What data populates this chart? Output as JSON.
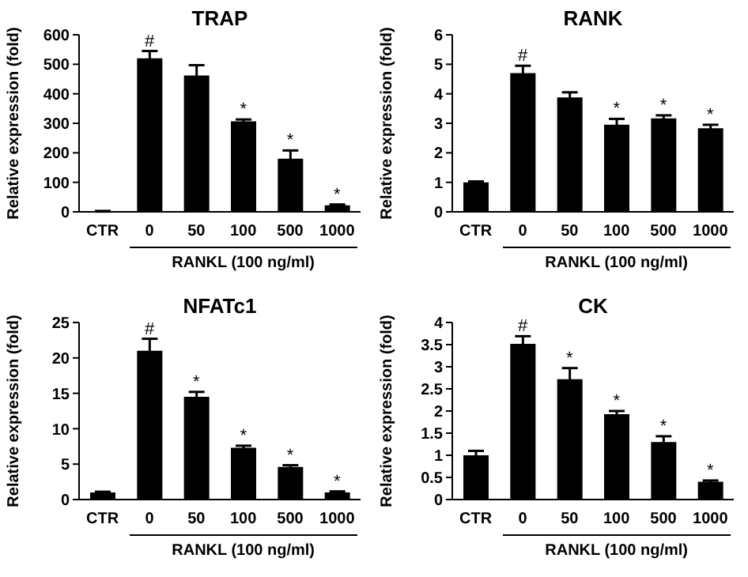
{
  "chart_data": [
    {
      "type": "bar",
      "title": "TRAP",
      "xlabel": "RANKL (100 ng/ml)",
      "ylabel": "Relative expression (fold)",
      "categories": [
        "CTR",
        "0",
        "50",
        "100",
        "500",
        "1000"
      ],
      "values": [
        2,
        520,
        462,
        307,
        180,
        22
      ],
      "errors": [
        1,
        25,
        35,
        6,
        28,
        3
      ],
      "color": "#000000",
      "ylim": [
        0,
        600
      ],
      "yticks": [
        0,
        100,
        200,
        300,
        400,
        500,
        600
      ],
      "grid": false,
      "annotations": [
        {
          "text": "#",
          "x": "0",
          "y": 520
        },
        {
          "text": "*",
          "x": "100",
          "y": 307
        },
        {
          "text": "*",
          "x": "500",
          "y": 180
        },
        {
          "text": "*",
          "x": "1000",
          "y": 22
        }
      ]
    },
    {
      "type": "bar",
      "title": "RANK",
      "xlabel": "RANKL (100 ng/ml)",
      "ylabel": "Relative expression (fold)",
      "categories": [
        "CTR",
        "0",
        "50",
        "100",
        "500",
        "1000"
      ],
      "values": [
        1.0,
        4.7,
        3.88,
        2.95,
        3.17,
        2.83
      ],
      "errors": [
        0.03,
        0.25,
        0.17,
        0.2,
        0.1,
        0.12
      ],
      "color": "#000000",
      "ylim": [
        0,
        6
      ],
      "yticks": [
        0,
        1,
        2,
        3,
        4,
        5,
        6
      ],
      "grid": false,
      "annotations": [
        {
          "text": "#",
          "x": "0",
          "y": 4.7
        },
        {
          "text": "*",
          "x": "100",
          "y": 2.95
        },
        {
          "text": "*",
          "x": "500",
          "y": 3.17
        },
        {
          "text": "*",
          "x": "1000",
          "y": 2.83
        }
      ]
    },
    {
      "type": "bar",
      "title": "NFATc1",
      "xlabel": "RANKL (100 ng/ml)",
      "ylabel": "Relative expression (fold)",
      "categories": [
        "CTR",
        "0",
        "50",
        "100",
        "500",
        "1000"
      ],
      "values": [
        1.0,
        21,
        14.5,
        7.3,
        4.6,
        1.0
      ],
      "errors": [
        0.1,
        1.7,
        0.7,
        0.3,
        0.25,
        0.15
      ],
      "color": "#000000",
      "ylim": [
        0,
        25
      ],
      "yticks": [
        0,
        5,
        10,
        15,
        20,
        25
      ],
      "grid": false,
      "annotations": [
        {
          "text": "#",
          "x": "0",
          "y": 21
        },
        {
          "text": "*",
          "x": "50",
          "y": 14.5
        },
        {
          "text": "*",
          "x": "100",
          "y": 7.3
        },
        {
          "text": "*",
          "x": "500",
          "y": 4.6
        },
        {
          "text": "*",
          "x": "1000",
          "y": 1.0
        }
      ]
    },
    {
      "type": "bar",
      "title": "CK",
      "xlabel": "RANKL (100 ng/ml)",
      "ylabel": "Relative expression (fold)",
      "categories": [
        "CTR",
        "0",
        "50",
        "100",
        "500",
        "1000"
      ],
      "values": [
        1.0,
        3.52,
        2.72,
        1.93,
        1.3,
        0.4
      ],
      "errors": [
        0.1,
        0.17,
        0.25,
        0.07,
        0.13,
        0.03
      ],
      "color": "#000000",
      "ylim": [
        0,
        4
      ],
      "yticks": [
        0,
        0.5,
        1,
        1.5,
        2,
        2.5,
        3,
        3.5,
        4
      ],
      "grid": false,
      "annotations": [
        {
          "text": "#",
          "x": "0",
          "y": 3.52
        },
        {
          "text": "*",
          "x": "50",
          "y": 2.72
        },
        {
          "text": "*",
          "x": "100",
          "y": 1.93
        },
        {
          "text": "*",
          "x": "500",
          "y": 1.3
        },
        {
          "text": "*",
          "x": "1000",
          "y": 0.4
        }
      ]
    }
  ]
}
